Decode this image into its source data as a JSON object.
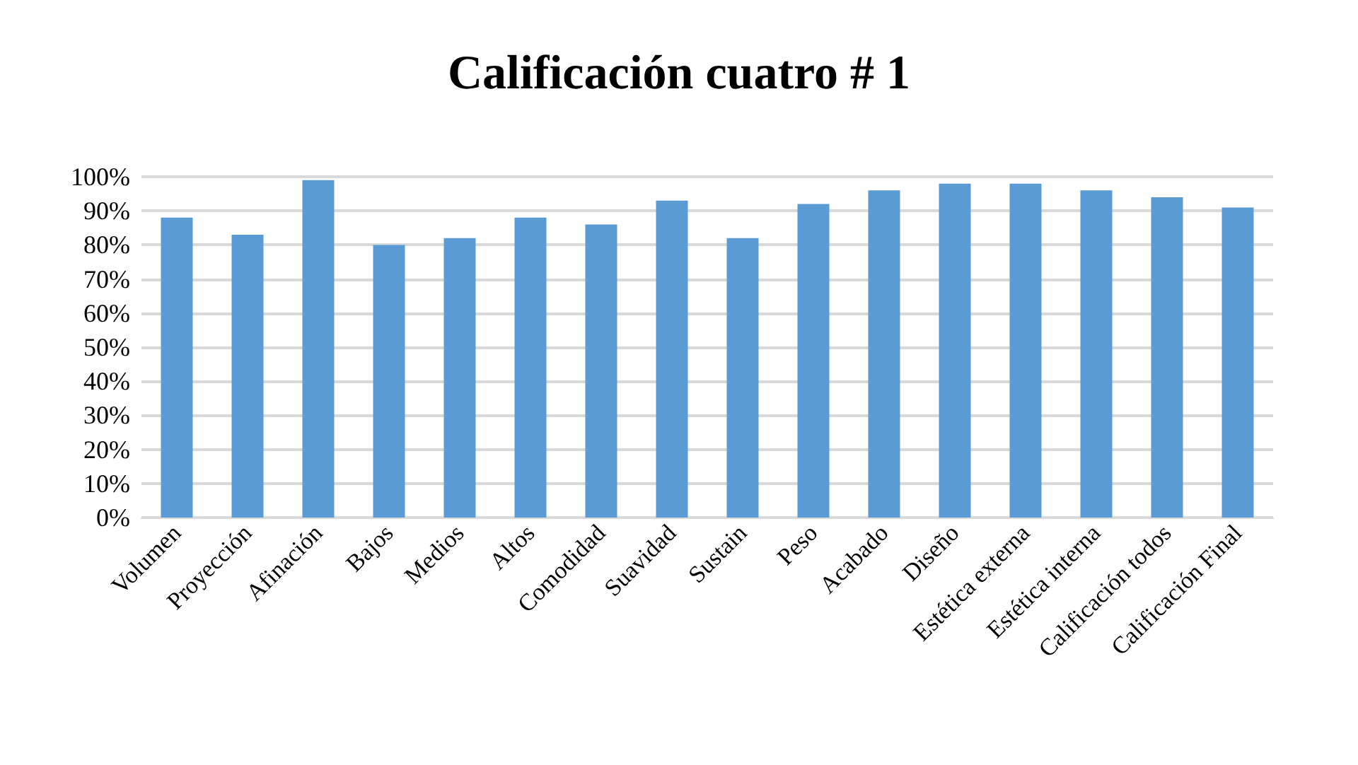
{
  "chart_data": {
    "type": "bar",
    "title": "Calificación cuatro # 1",
    "categories": [
      "Volumen",
      "Proyección",
      "Afinación",
      "Bajos",
      "Medios",
      "Altos",
      "Comodidad",
      "Suavidad",
      "Sustain",
      "Peso",
      "Acabado",
      "Diseño",
      "Estética externa",
      "Estética interna",
      "Calificación todos",
      "Calificación Final"
    ],
    "values": [
      88,
      83,
      99,
      80,
      82,
      88,
      86,
      93,
      82,
      92,
      96,
      98,
      98,
      96,
      94,
      91
    ],
    "color": "#5b9bd5",
    "ylim": [
      0,
      100
    ],
    "yticks": [
      {
        "value": 0,
        "label": "0%"
      },
      {
        "value": 10,
        "label": "10%"
      },
      {
        "value": 20,
        "label": "20%"
      },
      {
        "value": 30,
        "label": "30%"
      },
      {
        "value": 40,
        "label": "40%"
      },
      {
        "value": 50,
        "label": "50%"
      },
      {
        "value": 60,
        "label": "60%"
      },
      {
        "value": 70,
        "label": "70%"
      },
      {
        "value": 80,
        "label": "80%"
      },
      {
        "value": 90,
        "label": "90%"
      },
      {
        "value": 100,
        "label": "100%"
      }
    ],
    "grid": true
  }
}
